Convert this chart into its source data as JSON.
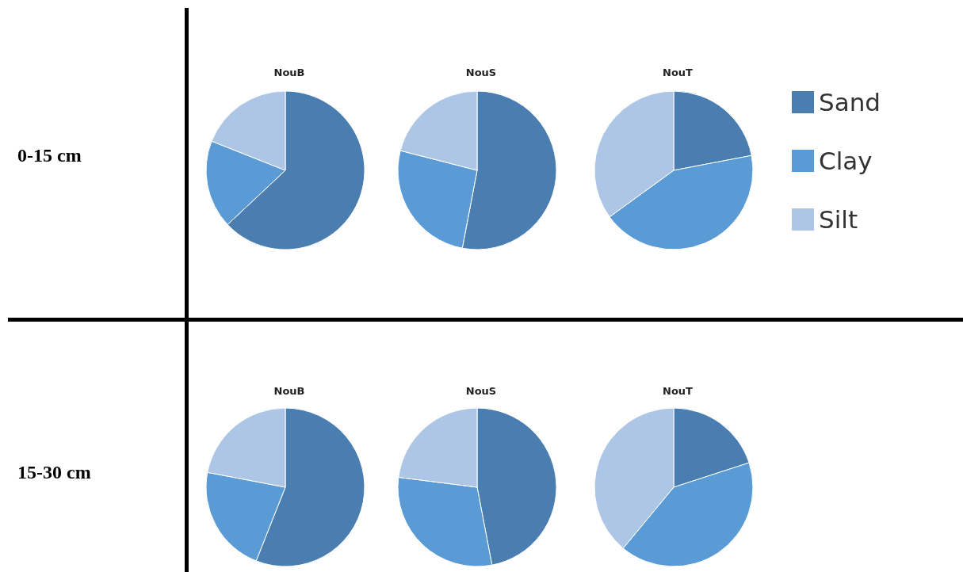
{
  "chart_data": [
    {
      "type": "pie",
      "title": "NouB",
      "annotations": [
        "0-15 cm"
      ],
      "categories": [
        null,
        null,
        null
      ],
      "values": [
        63,
        18,
        19
      ],
      "colors": [
        "#4a7eb0",
        "#5b9bd5",
        "#aec6e6"
      ]
    },
    {
      "type": "pie",
      "title": "NouS",
      "categories": [
        null,
        null,
        null
      ],
      "values": [
        53,
        26,
        21
      ],
      "colors": [
        "#4a7eb0",
        "#5b9bd5",
        "#aec6e6"
      ]
    },
    {
      "type": "pie",
      "title": "NouT",
      "categories": [
        "Sand",
        "Clay",
        "Silt"
      ],
      "values": [
        22,
        43,
        35
      ],
      "colors": [
        "#4a7eb0",
        "#5b9bd5",
        "#aec6e6"
      ],
      "legend": "right"
    },
    {
      "type": "pie",
      "title": "NouB",
      "annotations": [
        "15-30 cm"
      ],
      "categories": [
        null,
        null,
        null
      ],
      "values": [
        56,
        22,
        22
      ],
      "colors": [
        "#4a7eb0",
        "#5b9bd5",
        "#aec6e6"
      ]
    },
    {
      "type": "pie",
      "title": "NouS",
      "categories": [
        null,
        null,
        null
      ],
      "values": [
        47,
        30,
        23
      ],
      "colors": [
        "#4a7eb0",
        "#5b9bd5",
        "#aec6e6"
      ]
    },
    {
      "type": "pie",
      "title": "NouT",
      "categories": [
        null,
        null,
        null
      ],
      "values": [
        20,
        41,
        39
      ],
      "colors": [
        "#4a7eb0",
        "#5b9bd5",
        "#aec6e6"
      ]
    }
  ]
}
